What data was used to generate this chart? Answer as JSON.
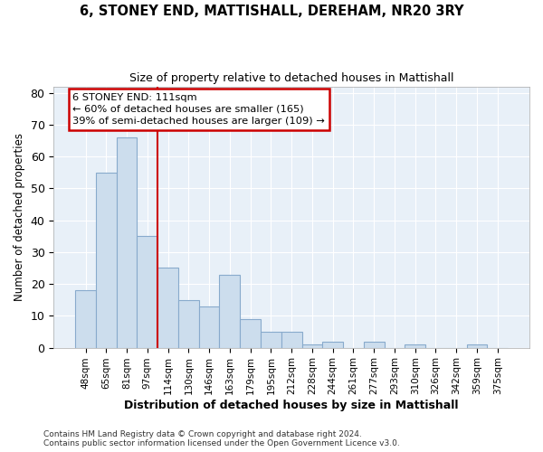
{
  "title": "6, STONEY END, MATTISHALL, DEREHAM, NR20 3RY",
  "subtitle": "Size of property relative to detached houses in Mattishall",
  "xlabel": "Distribution of detached houses by size in Mattishall",
  "ylabel": "Number of detached properties",
  "bar_color": "#ccdded",
  "bar_edge_color": "#88aacc",
  "bin_labels": [
    "48sqm",
    "65sqm",
    "81sqm",
    "97sqm",
    "114sqm",
    "130sqm",
    "146sqm",
    "163sqm",
    "179sqm",
    "195sqm",
    "212sqm",
    "228sqm",
    "244sqm",
    "261sqm",
    "277sqm",
    "293sqm",
    "310sqm",
    "326sqm",
    "342sqm",
    "359sqm",
    "375sqm"
  ],
  "bar_values": [
    18,
    55,
    66,
    35,
    25,
    15,
    13,
    23,
    9,
    5,
    5,
    1,
    2,
    0,
    2,
    0,
    1,
    0,
    0,
    1,
    0
  ],
  "annotation_text": "6 STONEY END: 111sqm\n← 60% of detached houses are smaller (165)\n39% of semi-detached houses are larger (109) →",
  "annotation_box_color": "#ffffff",
  "annotation_box_edge_color": "#cc0000",
  "vline_color": "#cc0000",
  "ylim": [
    0,
    82
  ],
  "yticks": [
    0,
    10,
    20,
    30,
    40,
    50,
    60,
    70,
    80
  ],
  "footer_line1": "Contains HM Land Registry data © Crown copyright and database right 2024.",
  "footer_line2": "Contains public sector information licensed under the Open Government Licence v3.0.",
  "background_color": "#ffffff",
  "plot_bg_color": "#e8f0f8",
  "grid_color": "#ffffff",
  "vline_index": 4
}
